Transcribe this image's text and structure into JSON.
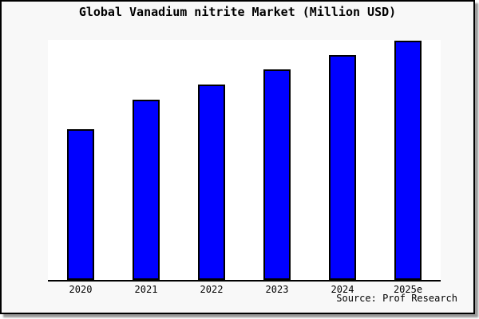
{
  "window": {
    "background": "#f8f8f8",
    "frame_border_color": "#000000",
    "shadow_color": "#999999"
  },
  "chart_data": {
    "type": "bar",
    "title": "Global Vanadium nitrite Market (Million USD)",
    "categories": [
      "2020",
      "2021",
      "2022",
      "2023",
      "2024",
      "2025e"
    ],
    "values": [
      63,
      75.3,
      81.7,
      88,
      94,
      100
    ],
    "value_note": "no y-axis ticks shown; values are relative index with 2025e = 100",
    "xlabel": "",
    "ylabel": "",
    "ylim": [
      0,
      100.3
    ],
    "grid": false,
    "legend": false,
    "colors": {
      "bar_fill": "#0000ff",
      "bar_border": "#000000",
      "plot_bg": "#ffffff"
    }
  },
  "footer": {
    "source_label": "Source: Prof Research"
  }
}
